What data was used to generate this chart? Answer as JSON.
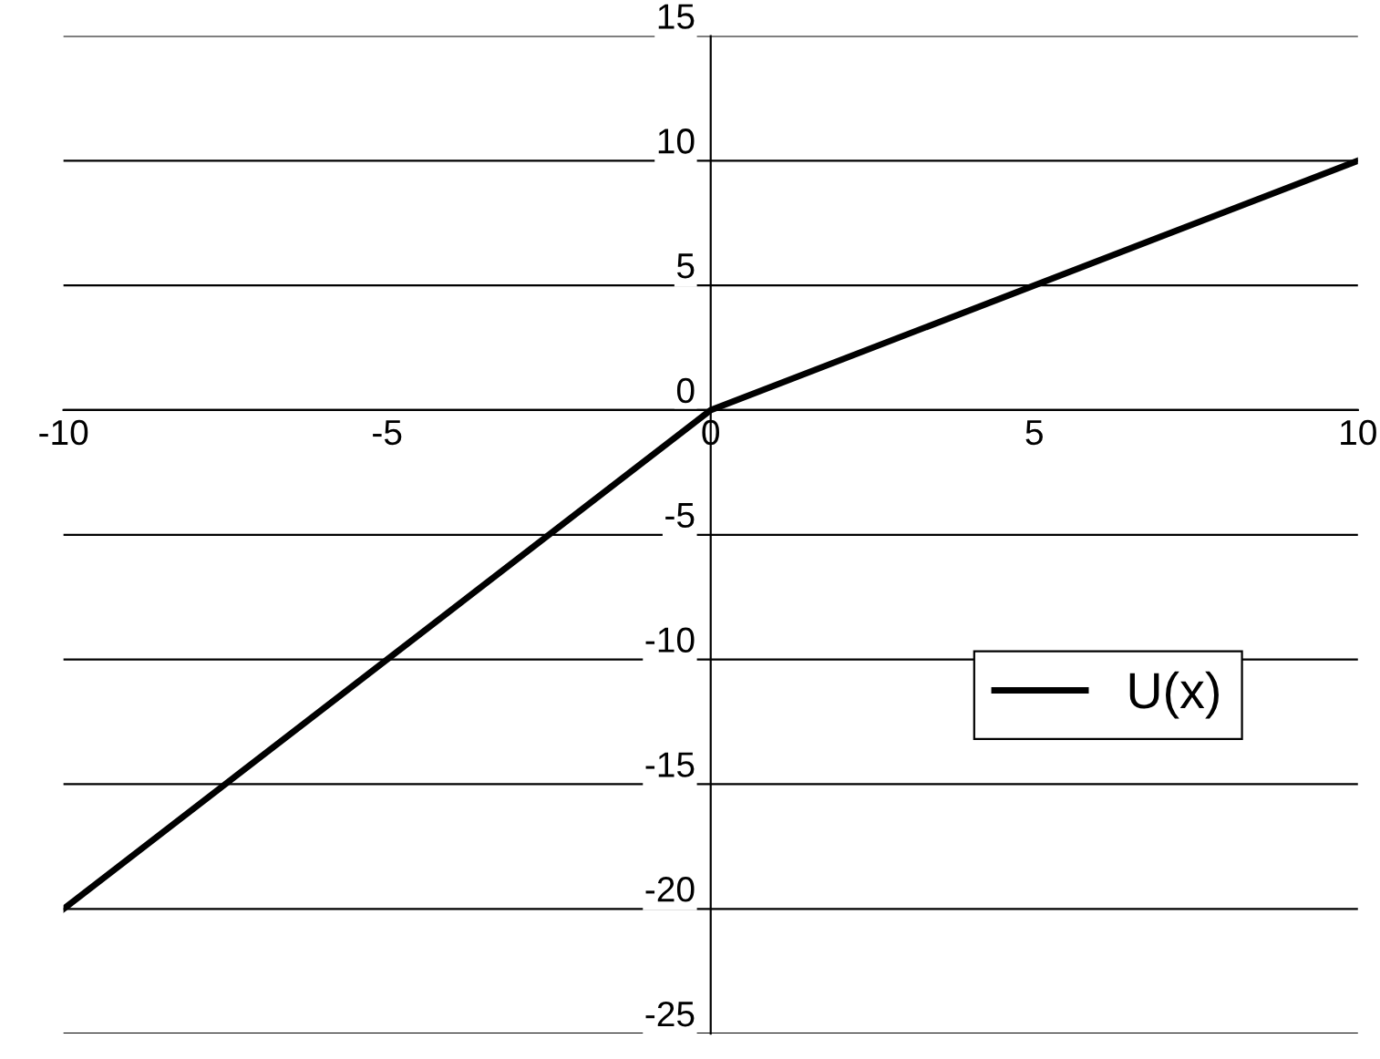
{
  "chart_data": {
    "type": "line",
    "x": [
      -10,
      0,
      10
    ],
    "series": [
      {
        "name": "U(x)",
        "color": "#000000",
        "values": [
          -20,
          0,
          10
        ]
      }
    ],
    "xlim": [
      -10,
      10
    ],
    "xticks": [
      -10,
      -5,
      0,
      5,
      10
    ],
    "ylim": [
      -25,
      15
    ],
    "yticks": [
      -25,
      -20,
      -15,
      -10,
      -5,
      0,
      5,
      10,
      15
    ],
    "grid": "y",
    "legend": "lower right",
    "marker": "none",
    "line_style": "solid"
  }
}
